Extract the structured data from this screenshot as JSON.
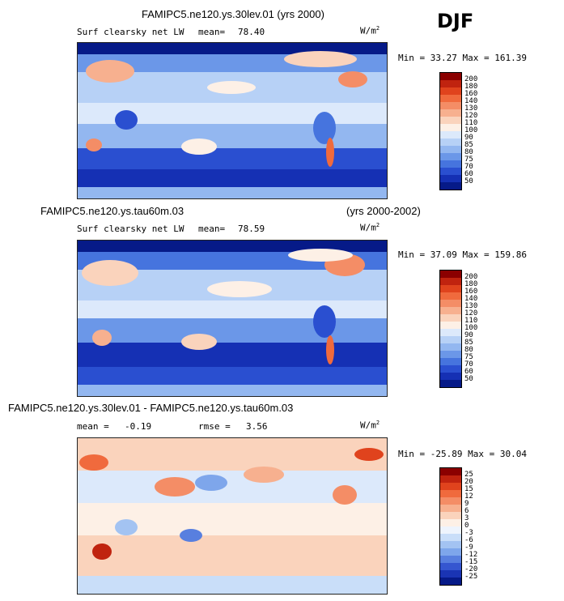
{
  "season": "DJF",
  "units_prefix": "W/m",
  "units_exp": "2",
  "panels": [
    {
      "title": "FAMIPC5.ne120.ys.30lev.01 (yrs 2000)",
      "variable": "Surf clearsky net LW",
      "stat1_label": "mean=",
      "stat1_value": "78.40",
      "minmax": "Min =  33.27 Max = 161.39",
      "levels": [
        "200",
        "180",
        "160",
        "140",
        "130",
        "120",
        "110",
        "100",
        "90",
        "85",
        "80",
        "75",
        "70",
        "60",
        "50"
      ],
      "colors": [
        "#8b0000",
        "#c0230f",
        "#e0431d",
        "#f06a3d",
        "#f48d66",
        "#f7b08f",
        "#fad3bc",
        "#fdf0e6",
        "#dce9fb",
        "#b7d1f6",
        "#93b7f0",
        "#6b97e8",
        "#4674de",
        "#2a4fd0",
        "#1530b4",
        "#061a88"
      ]
    },
    {
      "title": "FAMIPC5.ne120.ys.tau60m.03",
      "years": "(yrs 2000-2002)",
      "variable": "Surf clearsky net LW",
      "stat1_label": "mean=",
      "stat1_value": "78.59",
      "minmax": "Min =  37.09 Max = 159.86",
      "levels": [
        "200",
        "180",
        "160",
        "140",
        "130",
        "120",
        "110",
        "100",
        "90",
        "85",
        "80",
        "75",
        "70",
        "60",
        "50"
      ],
      "colors": [
        "#8b0000",
        "#c0230f",
        "#e0431d",
        "#f06a3d",
        "#f48d66",
        "#f7b08f",
        "#fad3bc",
        "#fdf0e6",
        "#dce9fb",
        "#b7d1f6",
        "#93b7f0",
        "#6b97e8",
        "#4674de",
        "#2a4fd0",
        "#1530b4",
        "#061a88"
      ]
    },
    {
      "title": "FAMIPC5.ne120.ys.30lev.01 - FAMIPC5.ne120.ys.tau60m.03",
      "stat1_label": "mean =",
      "stat1_value": "-0.19",
      "stat2_label": "rmse =",
      "stat2_value": "3.56",
      "minmax": "Min = -25.89 Max =  30.04",
      "levels": [
        "25",
        "20",
        "15",
        "12",
        "9",
        "6",
        "3",
        "0",
        "-3",
        "-6",
        "-9",
        "-12",
        "-15",
        "-20",
        "-25"
      ],
      "colors": [
        "#8b0000",
        "#c0230f",
        "#e0431d",
        "#f06a3d",
        "#f48d66",
        "#f7b08f",
        "#fad3bc",
        "#fdf0e6",
        "#eef4fd",
        "#c9def9",
        "#a3c3f2",
        "#7ea6eb",
        "#587fdf",
        "#3556d0",
        "#1a34b4",
        "#061a88"
      ]
    }
  ]
}
